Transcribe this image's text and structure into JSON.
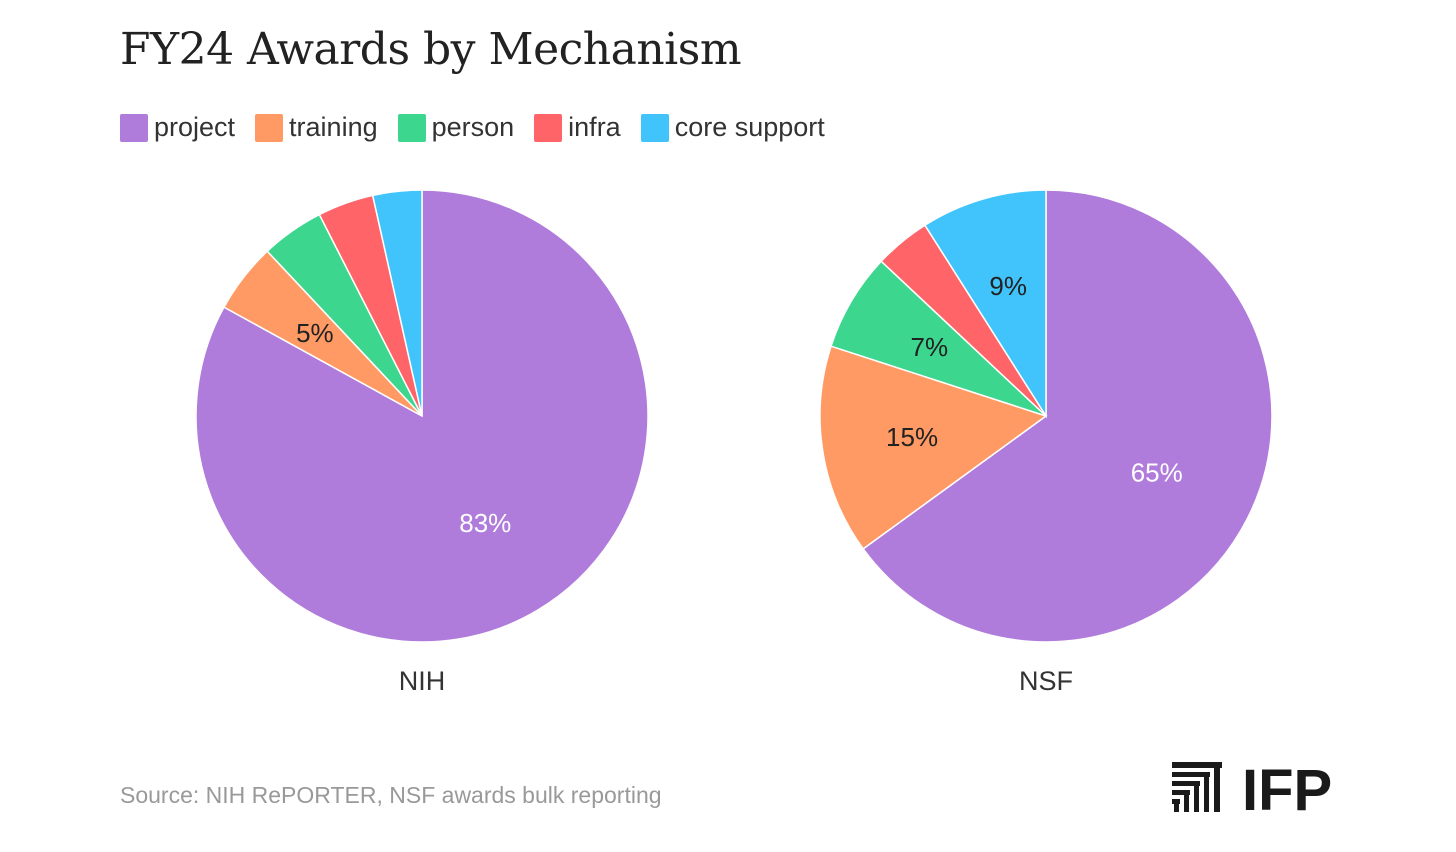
{
  "title": "FY24 Awards by Mechanism",
  "source": "Source: NIH RePORTER, NSF awards bulk reporting",
  "logo": {
    "text": "IFP"
  },
  "colors": {
    "project": "#b07cdb",
    "training": "#ff9a64",
    "person": "#3dd68f",
    "infra": "#ff6469",
    "core support": "#40c4fb"
  },
  "chart_data": [
    {
      "type": "pie",
      "title": "NIH",
      "start": "12 o'clock",
      "direction": "clockwise",
      "legend": [
        "project",
        "training",
        "person",
        "infra",
        "core support"
      ],
      "slices": [
        {
          "label": "project",
          "value": 83,
          "display": "83%"
        },
        {
          "label": "training",
          "value": 5,
          "display": "5%"
        },
        {
          "label": "person",
          "value": 4.5,
          "display": ""
        },
        {
          "label": "infra",
          "value": 4,
          "display": ""
        },
        {
          "label": "core support",
          "value": 3.5,
          "display": ""
        }
      ]
    },
    {
      "type": "pie",
      "title": "NSF",
      "start": "12 o'clock",
      "direction": "clockwise",
      "legend": [
        "project",
        "training",
        "person",
        "infra",
        "core support"
      ],
      "slices": [
        {
          "label": "project",
          "value": 65,
          "display": "65%"
        },
        {
          "label": "training",
          "value": 15,
          "display": "15%"
        },
        {
          "label": "person",
          "value": 7,
          "display": "7%"
        },
        {
          "label": "infra",
          "value": 4,
          "display": ""
        },
        {
          "label": "core support",
          "value": 9,
          "display": "9%"
        }
      ]
    }
  ]
}
